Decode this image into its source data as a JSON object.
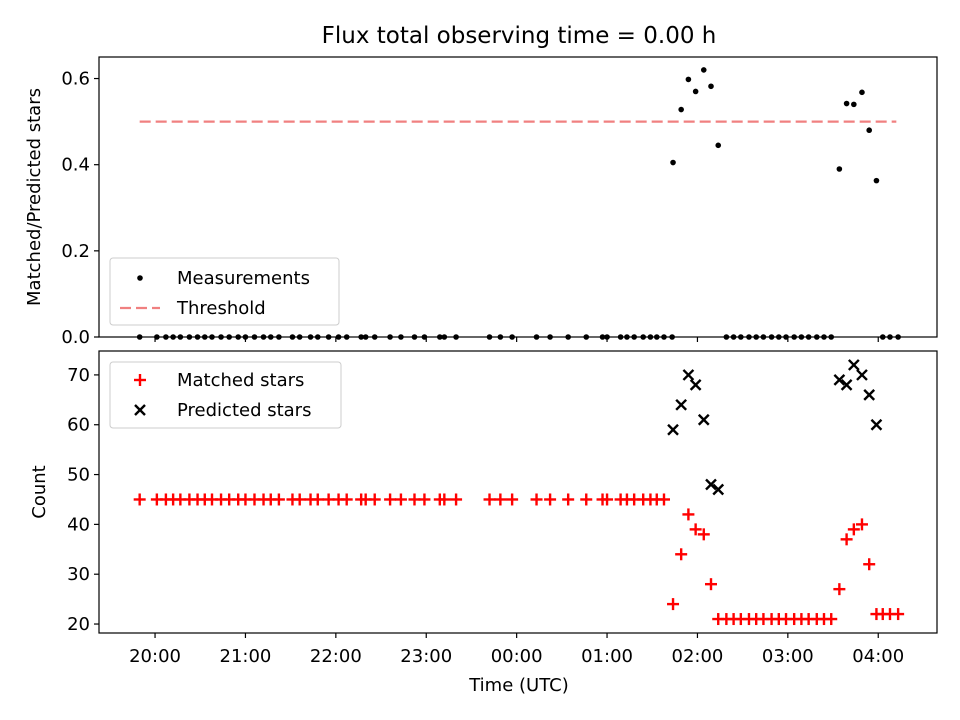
{
  "chart_data": {
    "title": "Flux total observing time = 0.00 h",
    "xlabel": "Time (UTC)",
    "xticks": [
      "20:00",
      "21:00",
      "22:00",
      "23:00",
      "00:00",
      "01:00",
      "02:00",
      "03:00",
      "04:00"
    ],
    "xlim_hours": [
      19.38,
      28.65
    ],
    "top": {
      "type": "scatter",
      "ylabel": "Matched/Predicted stars",
      "ylim": [
        0,
        0.65
      ],
      "yticks": [
        "0.0",
        "0.2",
        "0.4",
        "0.6"
      ],
      "threshold": {
        "value": 0.5,
        "x_range_hours": [
          19.83,
          28.2
        ],
        "color": "#f08080"
      },
      "legend": {
        "position": "lower-left",
        "entries": [
          "Measurements",
          "Threshold"
        ]
      },
      "series": [
        {
          "name": "Measurements",
          "color": "#000000",
          "marker": "dot",
          "points": [
            [
              19.83,
              0
            ],
            [
              20.02,
              0
            ],
            [
              20.12,
              0
            ],
            [
              20.2,
              0
            ],
            [
              20.28,
              0
            ],
            [
              20.38,
              0
            ],
            [
              20.47,
              0
            ],
            [
              20.55,
              0
            ],
            [
              20.63,
              0
            ],
            [
              20.73,
              0
            ],
            [
              20.82,
              0
            ],
            [
              20.92,
              0
            ],
            [
              21.0,
              0
            ],
            [
              21.1,
              0
            ],
            [
              21.2,
              0
            ],
            [
              21.28,
              0
            ],
            [
              21.37,
              0
            ],
            [
              21.52,
              0
            ],
            [
              21.6,
              0
            ],
            [
              21.72,
              0
            ],
            [
              21.8,
              0
            ],
            [
              21.92,
              0
            ],
            [
              22.03,
              0
            ],
            [
              22.12,
              0
            ],
            [
              22.28,
              0
            ],
            [
              22.33,
              0
            ],
            [
              22.43,
              0
            ],
            [
              22.6,
              0
            ],
            [
              22.72,
              0
            ],
            [
              22.87,
              0
            ],
            [
              22.98,
              0
            ],
            [
              23.15,
              0
            ],
            [
              23.2,
              0
            ],
            [
              23.33,
              0
            ],
            [
              23.7,
              0
            ],
            [
              23.82,
              0
            ],
            [
              23.95,
              0
            ],
            [
              24.22,
              0
            ],
            [
              24.37,
              0
            ],
            [
              24.57,
              0
            ],
            [
              24.77,
              0
            ],
            [
              24.95,
              0
            ],
            [
              25.0,
              0
            ],
            [
              25.15,
              0
            ],
            [
              25.22,
              0
            ],
            [
              25.3,
              0
            ],
            [
              25.4,
              0
            ],
            [
              25.48,
              0
            ],
            [
              25.55,
              0
            ],
            [
              25.63,
              0
            ],
            [
              25.72,
              0
            ],
            [
              25.73,
              0.405
            ],
            [
              25.82,
              0.528
            ],
            [
              25.9,
              0.598
            ],
            [
              25.98,
              0.57
            ],
            [
              26.07,
              0.62
            ],
            [
              26.15,
              0.582
            ],
            [
              26.23,
              0.445
            ],
            [
              26.32,
              0
            ],
            [
              26.4,
              0
            ],
            [
              26.48,
              0
            ],
            [
              26.57,
              0
            ],
            [
              26.65,
              0
            ],
            [
              26.73,
              0
            ],
            [
              26.82,
              0
            ],
            [
              26.9,
              0
            ],
            [
              26.98,
              0
            ],
            [
              27.07,
              0
            ],
            [
              27.15,
              0
            ],
            [
              27.23,
              0
            ],
            [
              27.32,
              0
            ],
            [
              27.4,
              0
            ],
            [
              27.48,
              0
            ],
            [
              27.57,
              0.39
            ],
            [
              27.65,
              0.542
            ],
            [
              27.73,
              0.54
            ],
            [
              27.82,
              0.568
            ],
            [
              27.9,
              0.48
            ],
            [
              27.98,
              0.363
            ],
            [
              28.05,
              0
            ],
            [
              28.13,
              0
            ],
            [
              28.22,
              0
            ]
          ]
        }
      ]
    },
    "bottom": {
      "type": "scatter",
      "ylabel": "Count",
      "ylim": [
        18.2,
        74.8
      ],
      "yticks": [
        "20",
        "30",
        "40",
        "50",
        "60",
        "70"
      ],
      "legend": {
        "position": "top-left",
        "entries": [
          "Matched stars",
          "Predicted stars"
        ]
      },
      "series": [
        {
          "name": "Matched stars",
          "color": "#ff0000",
          "marker": "plus",
          "points": [
            [
              19.83,
              45
            ],
            [
              20.02,
              45
            ],
            [
              20.12,
              45
            ],
            [
              20.2,
              45
            ],
            [
              20.28,
              45
            ],
            [
              20.38,
              45
            ],
            [
              20.47,
              45
            ],
            [
              20.55,
              45
            ],
            [
              20.63,
              45
            ],
            [
              20.73,
              45
            ],
            [
              20.82,
              45
            ],
            [
              20.92,
              45
            ],
            [
              21.0,
              45
            ],
            [
              21.1,
              45
            ],
            [
              21.2,
              45
            ],
            [
              21.28,
              45
            ],
            [
              21.37,
              45
            ],
            [
              21.52,
              45
            ],
            [
              21.6,
              45
            ],
            [
              21.72,
              45
            ],
            [
              21.8,
              45
            ],
            [
              21.92,
              45
            ],
            [
              22.03,
              45
            ],
            [
              22.12,
              45
            ],
            [
              22.28,
              45
            ],
            [
              22.33,
              45
            ],
            [
              22.43,
              45
            ],
            [
              22.6,
              45
            ],
            [
              22.72,
              45
            ],
            [
              22.87,
              45
            ],
            [
              22.98,
              45
            ],
            [
              23.15,
              45
            ],
            [
              23.2,
              45
            ],
            [
              23.33,
              45
            ],
            [
              23.7,
              45
            ],
            [
              23.82,
              45
            ],
            [
              23.95,
              45
            ],
            [
              24.22,
              45
            ],
            [
              24.37,
              45
            ],
            [
              24.57,
              45
            ],
            [
              24.77,
              45
            ],
            [
              24.95,
              45
            ],
            [
              25.0,
              45
            ],
            [
              25.15,
              45
            ],
            [
              25.22,
              45
            ],
            [
              25.3,
              45
            ],
            [
              25.4,
              45
            ],
            [
              25.48,
              45
            ],
            [
              25.55,
              45
            ],
            [
              25.63,
              45
            ],
            [
              25.73,
              24
            ],
            [
              25.82,
              34
            ],
            [
              25.9,
              42
            ],
            [
              25.98,
              39
            ],
            [
              26.07,
              38
            ],
            [
              26.15,
              28
            ],
            [
              26.23,
              21
            ],
            [
              26.32,
              21
            ],
            [
              26.4,
              21
            ],
            [
              26.48,
              21
            ],
            [
              26.57,
              21
            ],
            [
              26.65,
              21
            ],
            [
              26.73,
              21
            ],
            [
              26.82,
              21
            ],
            [
              26.9,
              21
            ],
            [
              26.98,
              21
            ],
            [
              27.07,
              21
            ],
            [
              27.15,
              21
            ],
            [
              27.23,
              21
            ],
            [
              27.32,
              21
            ],
            [
              27.4,
              21
            ],
            [
              27.48,
              21
            ],
            [
              27.57,
              27
            ],
            [
              27.65,
              37
            ],
            [
              27.73,
              39
            ],
            [
              27.82,
              40
            ],
            [
              27.9,
              32
            ],
            [
              27.98,
              22
            ],
            [
              28.05,
              22
            ],
            [
              28.13,
              22
            ],
            [
              28.22,
              22
            ]
          ]
        },
        {
          "name": "Predicted stars",
          "color": "#000000",
          "marker": "x",
          "points": [
            [
              25.73,
              59
            ],
            [
              25.82,
              64
            ],
            [
              25.9,
              70
            ],
            [
              25.98,
              68
            ],
            [
              26.07,
              61
            ],
            [
              26.15,
              48
            ],
            [
              26.23,
              47
            ],
            [
              27.57,
              69
            ],
            [
              27.65,
              68
            ],
            [
              27.73,
              72
            ],
            [
              27.82,
              70
            ],
            [
              27.9,
              66
            ],
            [
              27.98,
              60
            ]
          ]
        }
      ]
    }
  }
}
